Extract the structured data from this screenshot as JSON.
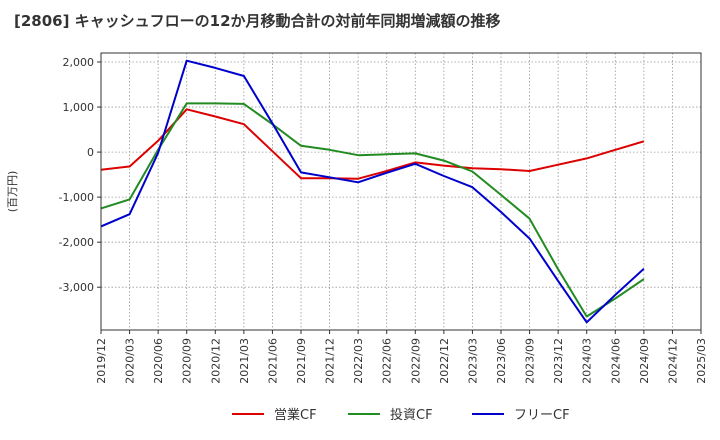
{
  "chart_data": {
    "type": "line",
    "title": "[2806]  キャッシュフローの12か月移動合計の対前年同期増減額の推移",
    "xlabel": "",
    "ylabel": "(百万円)",
    "categories": [
      "2019/12",
      "2020/03",
      "2020/06",
      "2020/09",
      "2020/12",
      "2021/03",
      "2021/06",
      "2021/09",
      "2021/12",
      "2022/03",
      "2022/06",
      "2022/09",
      "2022/12",
      "2023/03",
      "2023/06",
      "2023/09",
      "2023/12",
      "2024/03",
      "2024/06",
      "2024/09",
      "2024/12",
      "2025/03"
    ],
    "yticks": [
      {
        "value": 2000,
        "label": "2,000"
      },
      {
        "value": 1000,
        "label": "1,000"
      },
      {
        "value": 0,
        "label": "0"
      },
      {
        "value": -1000,
        "label": "-1,000"
      },
      {
        "value": -2000,
        "label": "-2,000"
      },
      {
        "value": -3000,
        "label": "-3,000"
      }
    ],
    "ylim": [
      -3950,
      2200
    ],
    "grid": true,
    "legend_position": "bottom",
    "series": [
      {
        "name": "営業CF",
        "color": "#dd0000",
        "values": [
          -390,
          -320,
          250,
          950,
          790,
          620,
          20,
          -580,
          -580,
          -590,
          -420,
          -230,
          -300,
          -360,
          -380,
          -420,
          -280,
          -140,
          50,
          240,
          null,
          null
        ]
      },
      {
        "name": "投資CF",
        "color": "#228b22",
        "values": [
          -1250,
          -1050,
          50,
          1080,
          1080,
          1070,
          620,
          140,
          50,
          -70,
          -50,
          -30,
          -190,
          -430,
          -950,
          -1480,
          -2600,
          -3650,
          -3250,
          -2820,
          null,
          null
        ]
      },
      {
        "name": "フリーCF",
        "color": "#0000cc",
        "values": [
          -1650,
          -1380,
          -20,
          2030,
          1870,
          1690,
          640,
          -450,
          -560,
          -670,
          -460,
          -260,
          -530,
          -780,
          -1330,
          -1920,
          -2860,
          -3780,
          -3170,
          -2590,
          null,
          null
        ]
      }
    ]
  }
}
